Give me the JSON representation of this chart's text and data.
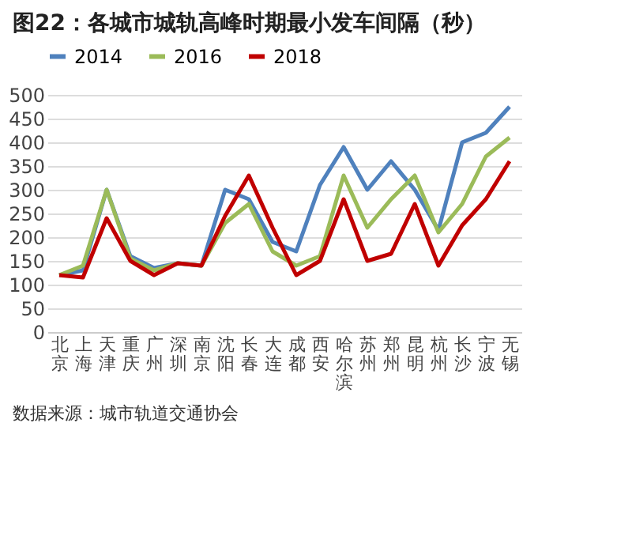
{
  "chart_data": {
    "type": "line",
    "title": "图22：各城市城轨高峰时期最小发车间隔（秒）",
    "categories": [
      "北京",
      "上海",
      "天津",
      "重庆",
      "广州",
      "深圳",
      "南京",
      "沈阳",
      "长春",
      "大连",
      "成都",
      "西安",
      "哈尔滨",
      "苏州",
      "郑州",
      "昆明",
      "杭州",
      "长沙",
      "宁波",
      "无锡"
    ],
    "series": [
      {
        "name": "2014",
        "color": "#4f81bd",
        "values": [
          120,
          130,
          300,
          160,
          135,
          145,
          140,
          300,
          280,
          190,
          170,
          310,
          390,
          300,
          360,
          300,
          215,
          400,
          420,
          475
        ]
      },
      {
        "name": "2016",
        "color": "#9bbb59",
        "values": [
          120,
          140,
          300,
          155,
          130,
          145,
          140,
          230,
          270,
          170,
          140,
          160,
          330,
          220,
          280,
          330,
          210,
          270,
          370,
          410
        ]
      },
      {
        "name": "2018",
        "color": "#c00000",
        "values": [
          120,
          115,
          240,
          150,
          120,
          145,
          140,
          245,
          330,
          220,
          120,
          150,
          280,
          150,
          165,
          270,
          140,
          225,
          280,
          360
        ]
      }
    ],
    "ylim": [
      0,
      500
    ],
    "yticks": [
      0,
      50,
      100,
      150,
      200,
      250,
      300,
      350,
      400,
      450,
      500
    ],
    "grid": "y",
    "legend": "top",
    "marker": "none",
    "line_style": "solid",
    "annotations": [
      "数据来源：城市轨道交通协会"
    ]
  }
}
